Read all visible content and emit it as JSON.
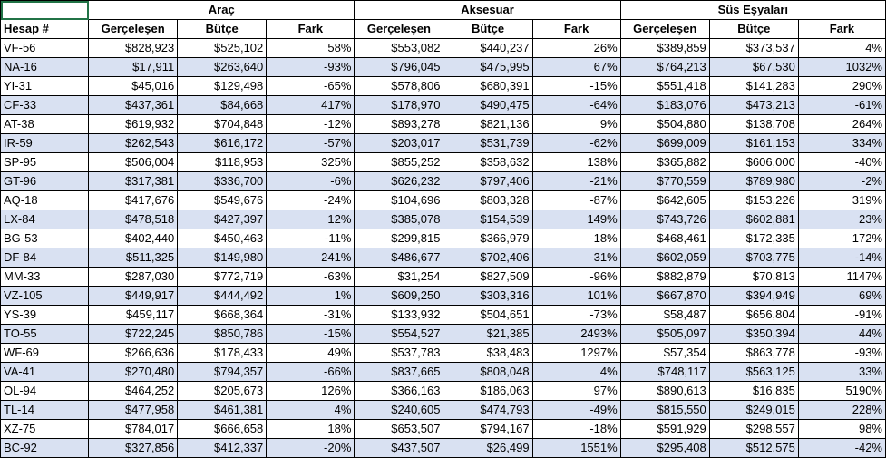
{
  "groups": [
    {
      "label": "Araç"
    },
    {
      "label": "Aksesuar"
    },
    {
      "label": "Süs Eşyaları"
    }
  ],
  "account_header": "Hesap #",
  "sub_headers": {
    "actual": "Gerçeleşen",
    "budget": "Bütçe",
    "diff": "Fark"
  },
  "band_color": "#d9e1f2",
  "rows": [
    [
      "VF-56",
      "$828,923",
      "$525,102",
      "58%",
      "$553,082",
      "$440,237",
      "26%",
      "$389,859",
      "$373,537",
      "4%"
    ],
    [
      "NA-16",
      "$17,911",
      "$263,640",
      "-93%",
      "$796,045",
      "$475,995",
      "67%",
      "$764,213",
      "$67,530",
      "1032%"
    ],
    [
      "YI-31",
      "$45,016",
      "$129,498",
      "-65%",
      "$578,806",
      "$680,391",
      "-15%",
      "$551,418",
      "$141,283",
      "290%"
    ],
    [
      "CF-33",
      "$437,361",
      "$84,668",
      "417%",
      "$178,970",
      "$490,475",
      "-64%",
      "$183,076",
      "$473,213",
      "-61%"
    ],
    [
      "AT-38",
      "$619,932",
      "$704,848",
      "-12%",
      "$893,278",
      "$821,136",
      "9%",
      "$504,880",
      "$138,708",
      "264%"
    ],
    [
      "IR-59",
      "$262,543",
      "$616,172",
      "-57%",
      "$203,017",
      "$531,739",
      "-62%",
      "$699,009",
      "$161,153",
      "334%"
    ],
    [
      "SP-95",
      "$506,004",
      "$118,953",
      "325%",
      "$855,252",
      "$358,632",
      "138%",
      "$365,882",
      "$606,000",
      "-40%"
    ],
    [
      "GT-96",
      "$317,381",
      "$336,700",
      "-6%",
      "$626,232",
      "$797,406",
      "-21%",
      "$770,559",
      "$789,980",
      "-2%"
    ],
    [
      "AQ-18",
      "$417,676",
      "$549,676",
      "-24%",
      "$104,696",
      "$803,328",
      "-87%",
      "$642,605",
      "$153,226",
      "319%"
    ],
    [
      "LX-84",
      "$478,518",
      "$427,397",
      "12%",
      "$385,078",
      "$154,539",
      "149%",
      "$743,726",
      "$602,881",
      "23%"
    ],
    [
      "BG-53",
      "$402,440",
      "$450,463",
      "-11%",
      "$299,815",
      "$366,979",
      "-18%",
      "$468,461",
      "$172,335",
      "172%"
    ],
    [
      "DF-84",
      "$511,325",
      "$149,980",
      "241%",
      "$486,677",
      "$702,406",
      "-31%",
      "$602,059",
      "$703,775",
      "-14%"
    ],
    [
      "MM-33",
      "$287,030",
      "$772,719",
      "-63%",
      "$31,254",
      "$827,509",
      "-96%",
      "$882,879",
      "$70,813",
      "1147%"
    ],
    [
      "VZ-105",
      "$449,917",
      "$444,492",
      "1%",
      "$609,250",
      "$303,316",
      "101%",
      "$667,870",
      "$394,949",
      "69%"
    ],
    [
      "YS-39",
      "$459,117",
      "$668,364",
      "-31%",
      "$133,932",
      "$504,651",
      "-73%",
      "$58,487",
      "$656,804",
      "-91%"
    ],
    [
      "TO-55",
      "$722,245",
      "$850,786",
      "-15%",
      "$554,527",
      "$21,385",
      "2493%",
      "$505,097",
      "$350,394",
      "44%"
    ],
    [
      "WF-69",
      "$266,636",
      "$178,433",
      "49%",
      "$537,783",
      "$38,483",
      "1297%",
      "$57,354",
      "$863,778",
      "-93%"
    ],
    [
      "VA-41",
      "$270,480",
      "$794,357",
      "-66%",
      "$837,665",
      "$808,048",
      "4%",
      "$748,117",
      "$563,125",
      "33%"
    ],
    [
      "OL-94",
      "$464,252",
      "$205,673",
      "126%",
      "$366,163",
      "$186,063",
      "97%",
      "$890,613",
      "$16,835",
      "5190%"
    ],
    [
      "TL-14",
      "$477,958",
      "$461,381",
      "4%",
      "$240,605",
      "$474,793",
      "-49%",
      "$815,550",
      "$249,015",
      "228%"
    ],
    [
      "XZ-75",
      "$784,017",
      "$666,658",
      "18%",
      "$653,507",
      "$794,167",
      "-18%",
      "$591,929",
      "$298,557",
      "98%"
    ],
    [
      "BC-92",
      "$327,856",
      "$412,337",
      "-20%",
      "$437,507",
      "$26,499",
      "1551%",
      "$295,408",
      "$512,575",
      "-42%"
    ]
  ]
}
